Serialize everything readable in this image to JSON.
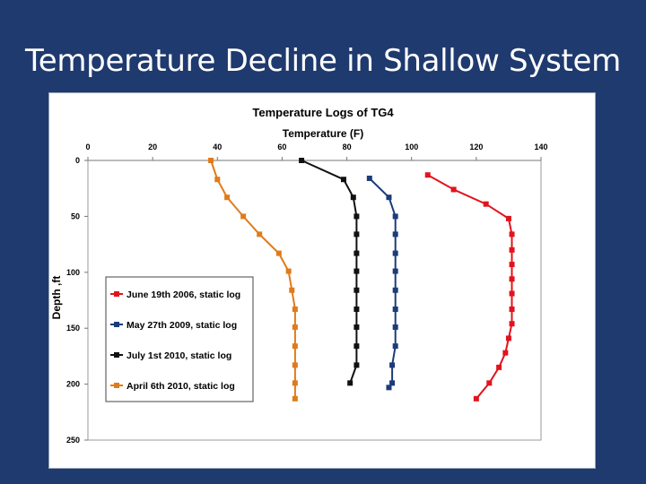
{
  "slide": {
    "title": "Temperature Decline in Shallow System"
  },
  "chart_data": {
    "type": "line",
    "title": "Temperature Logs of TG4",
    "xlabel": "Temperature (F)",
    "ylabel": "Depth ,ft",
    "x_axis_position": "top",
    "y_axis_inverted": true,
    "xlim": [
      0,
      140
    ],
    "ylim": [
      0,
      250
    ],
    "xticks": [
      0,
      20,
      40,
      60,
      80,
      100,
      120,
      140
    ],
    "yticks": [
      0,
      50,
      100,
      150,
      200,
      250
    ],
    "grid": false,
    "legend_position": "left",
    "series": [
      {
        "name": "June 19th 2006, static log",
        "color": "#e0141e",
        "points": [
          [
            105,
            13
          ],
          [
            113,
            26
          ],
          [
            123,
            39
          ],
          [
            130,
            52
          ],
          [
            131,
            66
          ],
          [
            131,
            80
          ],
          [
            131,
            93
          ],
          [
            131,
            106
          ],
          [
            131,
            119
          ],
          [
            131,
            133
          ],
          [
            131,
            146
          ],
          [
            130,
            159
          ],
          [
            129,
            172
          ],
          [
            127,
            185
          ],
          [
            124,
            199
          ],
          [
            120,
            213
          ]
        ]
      },
      {
        "name": "May 27th 2009, static log",
        "color": "#1b3c7a",
        "points": [
          [
            87,
            16
          ],
          [
            93,
            33
          ],
          [
            95,
            50
          ],
          [
            95,
            66
          ],
          [
            95,
            83
          ],
          [
            95,
            99
          ],
          [
            95,
            116
          ],
          [
            95,
            133
          ],
          [
            95,
            149
          ],
          [
            95,
            166
          ],
          [
            94,
            183
          ],
          [
            94,
            199
          ],
          [
            93,
            203
          ]
        ]
      },
      {
        "name": "July 1st 2010, static log",
        "color": "#111111",
        "points": [
          [
            66,
            0
          ],
          [
            79,
            17
          ],
          [
            82,
            33
          ],
          [
            83,
            50
          ],
          [
            83,
            66
          ],
          [
            83,
            83
          ],
          [
            83,
            99
          ],
          [
            83,
            116
          ],
          [
            83,
            133
          ],
          [
            83,
            149
          ],
          [
            83,
            166
          ],
          [
            83,
            183
          ],
          [
            81,
            199
          ]
        ]
      },
      {
        "name": "April 6th 2010, static log",
        "color": "#e07b1a",
        "points": [
          [
            38,
            0
          ],
          [
            40,
            17
          ],
          [
            43,
            33
          ],
          [
            48,
            50
          ],
          [
            53,
            66
          ],
          [
            59,
            83
          ],
          [
            62,
            99
          ],
          [
            63,
            116
          ],
          [
            64,
            133
          ],
          [
            64,
            149
          ],
          [
            64,
            166
          ],
          [
            64,
            183
          ],
          [
            64,
            199
          ],
          [
            64,
            213
          ]
        ]
      }
    ]
  }
}
